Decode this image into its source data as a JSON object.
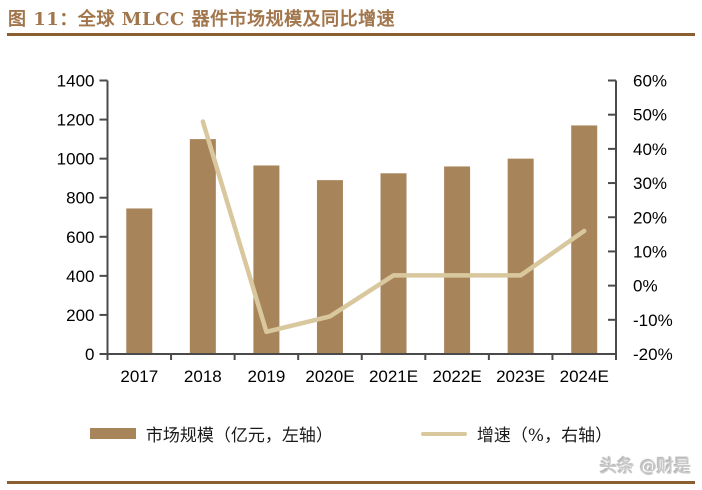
{
  "header": {
    "title": "图 11：全球 MLCC 器件市场规模及同比增速"
  },
  "colors": {
    "bar": "#a8845b",
    "line": "#d9c89e",
    "title_accent": "#a2764c",
    "rule": "#8c5f30",
    "axis": "#4a4a4a",
    "tick_label": "#000000",
    "watermark": "#c9c9c9"
  },
  "chart_data": {
    "type": "bar",
    "subtype": "combo-bar-line",
    "title": "全球 MLCC 器件市场规模及同比增速",
    "categories": [
      "2017",
      "2018",
      "2019",
      "2020E",
      "2021E",
      "2022E",
      "2023E",
      "2024E"
    ],
    "series": [
      {
        "name": "市场规模（亿元，左轴）",
        "type": "bar",
        "axis": "left",
        "color": "#a8845b",
        "values": [
          745,
          1100,
          965,
          890,
          925,
          960,
          1000,
          1170
        ]
      },
      {
        "name": "增速（%，右轴）",
        "type": "line",
        "axis": "right",
        "color": "#d9c89e",
        "values": [
          null,
          48,
          -13.5,
          -9,
          3,
          3,
          3,
          16
        ]
      }
    ],
    "left_axis": {
      "min": 0,
      "max": 1400,
      "step": 200,
      "suffix": ""
    },
    "right_axis": {
      "min": -20,
      "max": 60,
      "step": 10,
      "suffix": "%"
    },
    "grid": false,
    "legend_position": "bottom"
  },
  "legend": {
    "items": [
      {
        "label": "市场规模（亿元，左轴）",
        "swatch": "bar"
      },
      {
        "label": "增速（%，右轴）",
        "swatch": "line"
      }
    ]
  },
  "footer": {
    "watermark": "头条 @财是"
  }
}
